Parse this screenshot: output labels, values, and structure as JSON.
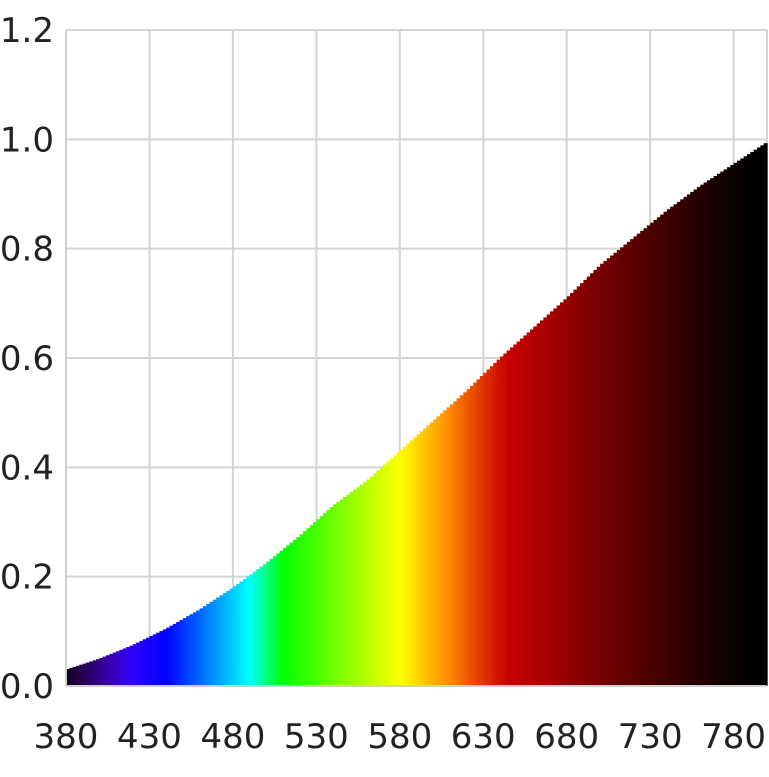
{
  "chart_data": {
    "type": "area",
    "title": "",
    "xlabel": "",
    "ylabel": "",
    "xlim": [
      380,
      800
    ],
    "ylim": [
      0,
      1.2
    ],
    "grid": true,
    "legend": "none",
    "x_tick_labels": [
      "380",
      "430",
      "480",
      "530",
      "580",
      "630",
      "680",
      "730",
      "780"
    ],
    "y_tick_labels": [
      "0.0",
      "0.2",
      "0.4",
      "0.6",
      "0.8",
      "1.0",
      "1.2"
    ],
    "x": [
      380,
      400,
      420,
      440,
      460,
      480,
      500,
      520,
      540,
      560,
      580,
      600,
      620,
      640,
      660,
      680,
      700,
      720,
      740,
      760,
      780,
      800
    ],
    "values": [
      0.03,
      0.05,
      0.075,
      0.105,
      0.14,
      0.18,
      0.225,
      0.275,
      0.33,
      0.375,
      0.43,
      0.485,
      0.54,
      0.6,
      0.655,
      0.71,
      0.77,
      0.82,
      0.87,
      0.915,
      0.955,
      0.995
    ],
    "fill": "visible spectrum color by wavelength",
    "colors": {
      "grid": "#d4d4d4",
      "background": "#ffffff",
      "axis": "#cfcfcf",
      "text": "#222222"
    }
  }
}
